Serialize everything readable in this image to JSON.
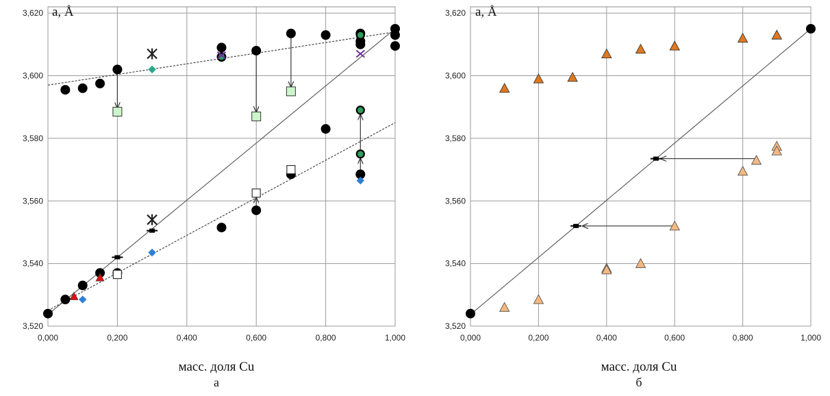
{
  "charts": [
    {
      "id": "a",
      "caption": "а",
      "yunit": "a, Å",
      "xlabel": "масс. доля Cu",
      "xticks": [
        "0,000",
        "0,200",
        "0,400",
        "0,600",
        "0,800",
        "1,000"
      ],
      "yticks": [
        "3,520",
        "3,540",
        "3,560",
        "3,580",
        "3,600",
        "3,620"
      ]
    },
    {
      "id": "b",
      "caption": "б",
      "yunit": "a, Å",
      "xlabel": "масс. доля Cu",
      "xticks": [
        "0,000",
        "0,200",
        "0,400",
        "0,600",
        "0,800",
        "1,000"
      ],
      "yticks": [
        "3,520",
        "3,540",
        "3,560",
        "3,580",
        "3,600",
        "3,620"
      ]
    }
  ],
  "chart_data": [
    {
      "type": "scatter",
      "title": "",
      "xlabel": "масс. доля Cu",
      "ylabel": "a, Å",
      "xlim": [
        0,
        1
      ],
      "ylim": [
        3.52,
        3.622
      ],
      "grid": true,
      "colors": {
        "circle": "#000000",
        "green_circle": "#2e9e5e",
        "light_green_square": "#ccf5cc",
        "open_square": "#ffffff",
        "red_triangle": "#e01010",
        "blue_diamond": "#2f7fd6",
        "teal_diamond": "#2aa88a",
        "purple_x": "#7030a0"
      },
      "lines": [
        {
          "style": "solid",
          "points": [
            [
              0,
              3.5237
            ],
            [
              1,
              3.615
            ]
          ]
        },
        {
          "style": "dashed",
          "points": [
            [
              0,
              3.597
            ],
            [
              1,
              3.614
            ]
          ]
        },
        {
          "style": "dashed",
          "points": [
            [
              0,
              3.525
            ],
            [
              1,
              3.585
            ]
          ]
        }
      ],
      "series": [
        {
          "marker": "circle",
          "points": [
            [
              0,
              3.524
            ],
            [
              0.05,
              3.5955
            ],
            [
              0.1,
              3.596
            ],
            [
              0.15,
              3.5975
            ],
            [
              0.2,
              3.602
            ],
            [
              0.5,
              3.609
            ],
            [
              0.5,
              3.606
            ],
            [
              0.6,
              3.608
            ],
            [
              0.7,
              3.6135
            ],
            [
              0.8,
              3.613
            ],
            [
              0.9,
              3.6135
            ],
            [
              0.9,
              3.611
            ],
            [
              0.9,
              3.61
            ],
            [
              1,
              3.615
            ],
            [
              1,
              3.613
            ],
            [
              1,
              3.6095
            ],
            [
              0.05,
              3.5285
            ],
            [
              0.1,
              3.533
            ],
            [
              0.15,
              3.537
            ],
            [
              0.2,
              3.537
            ],
            [
              0.5,
              3.5515
            ],
            [
              0.6,
              3.557
            ],
            [
              0.7,
              3.5685
            ],
            [
              0.8,
              3.583
            ],
            [
              0.9,
              3.5685
            ]
          ]
        },
        {
          "marker": "green_circle",
          "points": [
            [
              0.5,
              3.606
            ],
            [
              0.9,
              3.589
            ],
            [
              0.9,
              3.575
            ],
            [
              0.9,
              3.613
            ]
          ]
        },
        {
          "marker": "light_green_square",
          "points": [
            [
              0.2,
              3.5885
            ],
            [
              0.6,
              3.587
            ],
            [
              0.7,
              3.595
            ]
          ]
        },
        {
          "marker": "open_square",
          "points": [
            [
              0.2,
              3.5365
            ],
            [
              0.6,
              3.5625
            ],
            [
              0.7,
              3.57
            ]
          ]
        },
        {
          "marker": "dash_square",
          "points": [
            [
              0.2,
              3.542
            ],
            [
              0.3,
              3.5505
            ]
          ]
        },
        {
          "marker": "asterisk",
          "points": [
            [
              0.3,
              3.554
            ],
            [
              0.3,
              3.607
            ]
          ]
        },
        {
          "marker": "purple_x",
          "points": [
            [
              0.5,
              3.6065
            ],
            [
              0.9,
              3.607
            ]
          ]
        },
        {
          "marker": "teal_diamond",
          "points": [
            [
              0.3,
              3.602
            ]
          ]
        },
        {
          "marker": "red_triangle",
          "points": [
            [
              0.075,
              3.5295
            ],
            [
              0.15,
              3.5355
            ]
          ]
        },
        {
          "marker": "blue_diamond",
          "points": [
            [
              0.1,
              3.5285
            ],
            [
              0.3,
              3.5435
            ],
            [
              0.9,
              3.5665
            ]
          ]
        }
      ],
      "arrows": [
        {
          "from": [
            0.2,
            3.6005
          ],
          "to": [
            0.2,
            3.5898
          ]
        },
        {
          "from": [
            0.6,
            3.6065
          ],
          "to": [
            0.6,
            3.5885
          ]
        },
        {
          "from": [
            0.7,
            3.612
          ],
          "to": [
            0.7,
            3.5965
          ]
        },
        {
          "from": [
            0.6,
            3.558
          ],
          "to": [
            0.6,
            3.561
          ]
        },
        {
          "from": [
            0.9,
            3.5765
          ],
          "to": [
            0.9,
            3.5875
          ]
        },
        {
          "from": [
            0.9,
            3.5695
          ],
          "to": [
            0.9,
            3.5735
          ]
        }
      ]
    },
    {
      "type": "scatter",
      "title": "",
      "xlabel": "масс. доля Cu",
      "ylabel": "a, Å",
      "xlim": [
        0,
        1
      ],
      "ylim": [
        3.52,
        3.622
      ],
      "grid": true,
      "colors": {
        "orange_triangle": "#e07820",
        "light_orange_triangle": "#f5b880",
        "circle": "#000000"
      },
      "lines": [
        {
          "style": "solid",
          "points": [
            [
              0,
              3.5237
            ],
            [
              1,
              3.615
            ]
          ]
        }
      ],
      "series": [
        {
          "marker": "orange_triangle",
          "points": [
            [
              0.1,
              3.596
            ],
            [
              0.2,
              3.599
            ],
            [
              0.3,
              3.5995
            ],
            [
              0.4,
              3.607
            ],
            [
              0.5,
              3.6085
            ],
            [
              0.6,
              3.6095
            ],
            [
              0.8,
              3.612
            ],
            [
              0.9,
              3.613
            ]
          ]
        },
        {
          "marker": "light_orange_triangle",
          "points": [
            [
              0.1,
              3.526
            ],
            [
              0.2,
              3.5285
            ],
            [
              0.4,
              3.5385
            ],
            [
              0.4,
              3.538
            ],
            [
              0.5,
              3.54
            ],
            [
              0.6,
              3.552
            ],
            [
              0.8,
              3.5695
            ],
            [
              0.84,
              3.573
            ],
            [
              0.9,
              3.5775
            ],
            [
              0.9,
              3.576
            ]
          ]
        },
        {
          "marker": "circle",
          "points": [
            [
              0,
              3.524
            ],
            [
              1,
              3.615
            ]
          ]
        },
        {
          "marker": "dash_square",
          "points": [
            [
              0.31,
              3.552
            ],
            [
              0.545,
              3.5735
            ]
          ]
        }
      ],
      "arrows": [
        {
          "from": [
            0.84,
            3.5735
          ],
          "to": [
            0.56,
            3.5735
          ]
        },
        {
          "from": [
            0.6,
            3.552
          ],
          "to": [
            0.33,
            3.552
          ]
        }
      ]
    }
  ]
}
